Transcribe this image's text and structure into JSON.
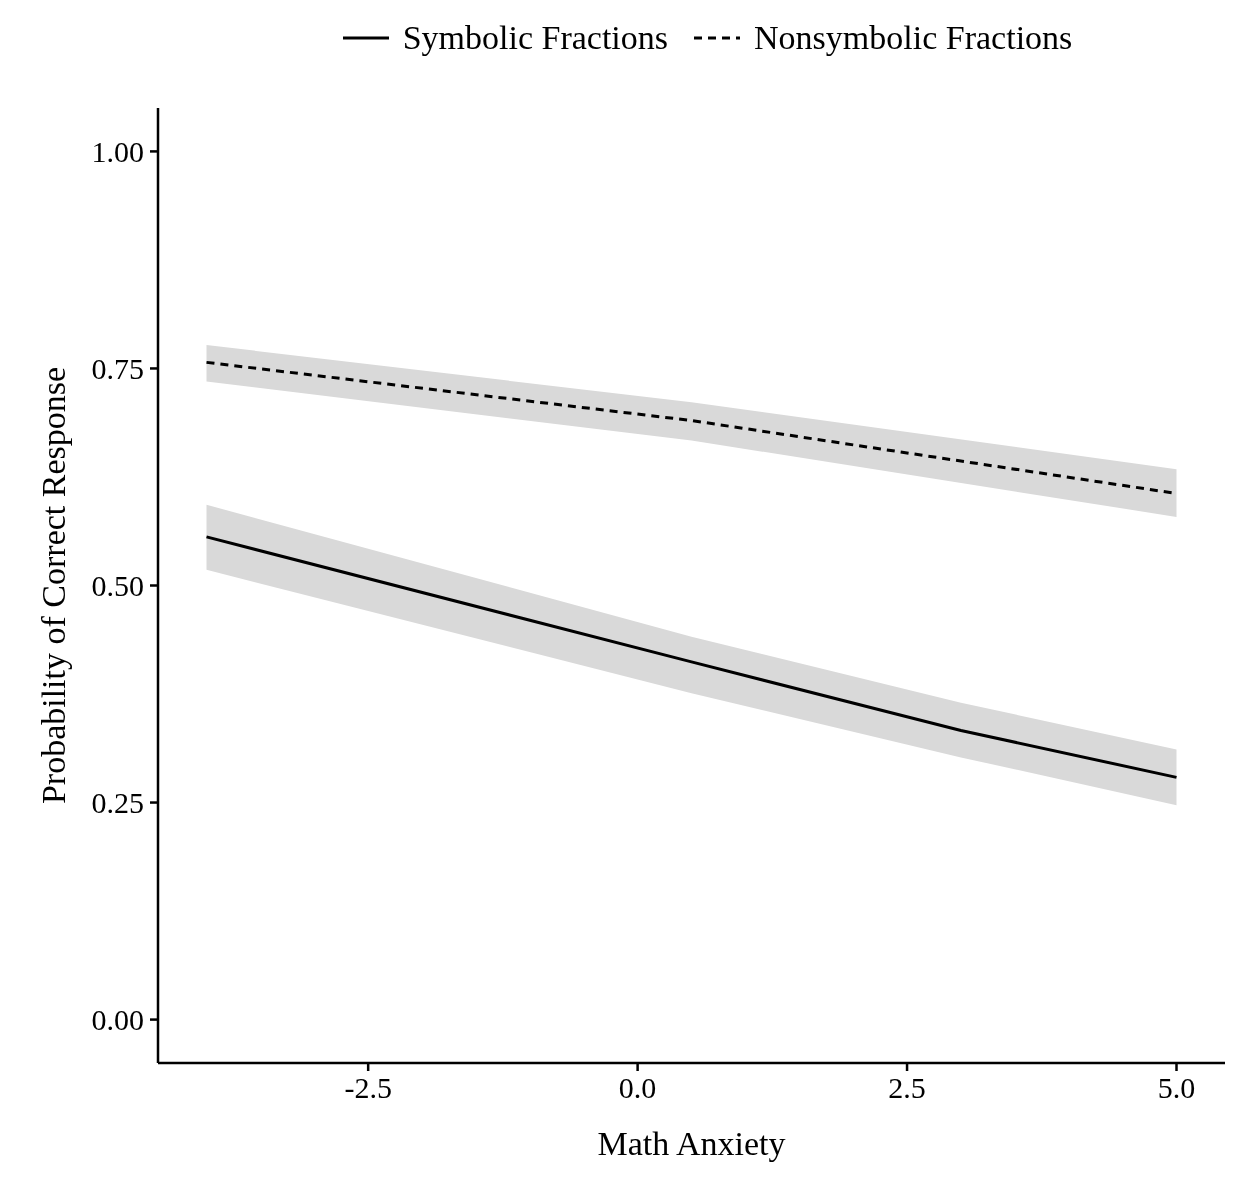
{
  "chart_data": {
    "type": "line",
    "xlabel": "Math Anxiety",
    "ylabel": "Probability of Correct Response",
    "xlim": [
      -4.45,
      5.45
    ],
    "xticks": [
      -2.5,
      {
        "value": 0,
        "label": "0.0"
      },
      2.5,
      {
        "value": 5,
        "label": "5.0"
      }
    ],
    "ylim": [
      -0.05,
      1.05
    ],
    "yticks": [
      {
        "value": 0,
        "label": "0.00"
      },
      0.25,
      {
        "value": 0.5,
        "label": "0.50"
      },
      0.75,
      {
        "value": 1,
        "label": "1.00"
      }
    ],
    "grid": false,
    "legend": "top",
    "marker": "none",
    "series": [
      {
        "name": "Symbolic Fractions",
        "color": "#000000",
        "line_style": "solid",
        "x": [
          -4,
          0.5,
          3,
          5
        ],
        "values": [
          0.556,
          0.412,
          0.333,
          0.279
        ],
        "lower": [
          0.518,
          0.376,
          0.302,
          0.247
        ],
        "upper": [
          0.593,
          0.441,
          0.365,
          0.311
        ]
      },
      {
        "name": "Nonsymbolic Fractions",
        "color": "#000000",
        "line_style": "dashed",
        "x": [
          -4,
          0.5,
          5
        ],
        "values": [
          0.757,
          0.69,
          0.606
        ],
        "lower": [
          0.735,
          0.667,
          0.579
        ],
        "upper": [
          0.777,
          0.711,
          0.634
        ]
      }
    ]
  }
}
